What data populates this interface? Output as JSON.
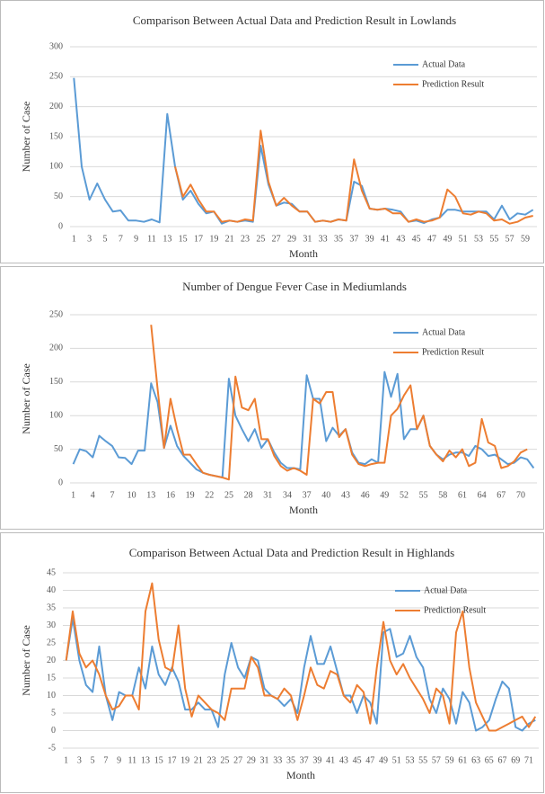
{
  "chart_data": [
    {
      "type": "line",
      "title": "Comparison Between Actual Data and Prediction Result in Lowlands",
      "x_label": "Month",
      "y_label": "Number of Case",
      "grid": true,
      "legend": "upper right",
      "categories": [
        "1",
        null,
        "3",
        null,
        "5",
        null,
        "7",
        null,
        "9",
        null,
        "11",
        null,
        "13",
        null,
        "15",
        null,
        "17",
        null,
        "19",
        null,
        "21",
        null,
        "23",
        null,
        "25",
        null,
        "27",
        null,
        "29",
        null,
        "31",
        null,
        "33",
        null,
        "35",
        null,
        "37",
        null,
        "39",
        null,
        "41",
        null,
        "43",
        null,
        "45",
        null,
        "47",
        null,
        "49",
        null,
        "51",
        null,
        "53",
        null,
        "55",
        null,
        "57",
        null,
        "59",
        null
      ],
      "ylim": [
        0,
        300
      ],
      "yticks": [
        0,
        50,
        100,
        150,
        200,
        250,
        300
      ],
      "series": [
        {
          "name": "Actual Data",
          "color": "#5b9bd5",
          "values": [
            248,
            100,
            45,
            72,
            45,
            25,
            27,
            10,
            10,
            8,
            12,
            7,
            188,
            100,
            45,
            60,
            38,
            22,
            25,
            5,
            10,
            8,
            10,
            8,
            135,
            70,
            35,
            40,
            38,
            25,
            25,
            8,
            10,
            8,
            12,
            10,
            75,
            68,
            30,
            28,
            30,
            28,
            25,
            8,
            10,
            6,
            12,
            15,
            28,
            28,
            25,
            25,
            25,
            25,
            12,
            35,
            12,
            22,
            20,
            28
          ]
        },
        {
          "name": "Prediction Result",
          "color": "#ed7d31",
          "values": [
            null,
            null,
            null,
            null,
            null,
            null,
            null,
            null,
            null,
            null,
            null,
            null,
            null,
            100,
            50,
            70,
            45,
            25,
            25,
            8,
            10,
            8,
            12,
            10,
            160,
            75,
            35,
            48,
            35,
            25,
            25,
            8,
            10,
            8,
            12,
            10,
            112,
            60,
            30,
            28,
            30,
            22,
            22,
            8,
            12,
            8,
            10,
            15,
            62,
            50,
            22,
            20,
            25,
            22,
            10,
            12,
            5,
            8,
            15,
            18
          ]
        }
      ]
    },
    {
      "type": "line",
      "title": "Number of Dengue Fever Case in Mediumlands",
      "x_label": "Month",
      "y_label": "Number of Case",
      "grid": true,
      "legend": "upper right",
      "categories": [
        "1",
        null,
        null,
        "4",
        null,
        null,
        "7",
        null,
        null,
        "10",
        null,
        null,
        "13",
        null,
        null,
        "16",
        null,
        null,
        "19",
        null,
        null,
        "22",
        null,
        null,
        "25",
        null,
        null,
        "28",
        null,
        null,
        "31",
        null,
        null,
        "34",
        null,
        null,
        "37",
        null,
        null,
        "40",
        null,
        null,
        "43",
        null,
        null,
        "46",
        null,
        null,
        "49",
        null,
        null,
        "52",
        null,
        null,
        "55",
        null,
        null,
        "58",
        null,
        null,
        "61",
        null,
        null,
        "64",
        null,
        null,
        "67",
        null,
        null,
        "70",
        null,
        null
      ],
      "ylim": [
        0,
        250
      ],
      "yticks": [
        0,
        50,
        100,
        150,
        200,
        250
      ],
      "series": [
        {
          "name": "Actual Data",
          "color": "#5b9bd5",
          "values": [
            28,
            50,
            47,
            38,
            70,
            62,
            55,
            38,
            37,
            28,
            48,
            48,
            148,
            120,
            52,
            85,
            55,
            40,
            30,
            20,
            15,
            12,
            10,
            8,
            155,
            100,
            80,
            62,
            80,
            52,
            65,
            45,
            30,
            22,
            22,
            20,
            160,
            125,
            125,
            62,
            82,
            70,
            80,
            45,
            30,
            28,
            35,
            30,
            165,
            128,
            162,
            65,
            80,
            80,
            100,
            55,
            42,
            35,
            42,
            45,
            45,
            40,
            55,
            50,
            40,
            42,
            35,
            28,
            30,
            38,
            35,
            22
          ]
        },
        {
          "name": "Prediction Result",
          "color": "#ed7d31",
          "values": [
            null,
            null,
            null,
            null,
            null,
            null,
            null,
            null,
            null,
            null,
            null,
            null,
            235,
            140,
            52,
            125,
            80,
            42,
            42,
            28,
            15,
            12,
            10,
            8,
            5,
            158,
            112,
            108,
            125,
            65,
            65,
            40,
            25,
            18,
            22,
            18,
            12,
            125,
            118,
            135,
            135,
            68,
            80,
            42,
            28,
            25,
            28,
            30,
            30,
            100,
            110,
            130,
            145,
            80,
            100,
            55,
            42,
            32,
            48,
            38,
            50,
            25,
            30,
            95,
            60,
            55,
            22,
            25,
            32,
            45,
            50,
            null
          ]
        }
      ]
    },
    {
      "type": "line",
      "title": "Comparison Between Actual Data and Prediction Result in Highlands",
      "x_label": "Month",
      "y_label": "Number of Case",
      "grid": true,
      "legend": "upper right",
      "categories": [
        "1",
        null,
        "3",
        null,
        "5",
        null,
        "7",
        null,
        "9",
        null,
        "11",
        null,
        "13",
        null,
        "15",
        null,
        "17",
        null,
        "19",
        null,
        "21",
        null,
        "23",
        null,
        "25",
        null,
        "27",
        null,
        "29",
        null,
        "31",
        null,
        "33",
        null,
        "35",
        null,
        "37",
        null,
        "39",
        null,
        "41",
        null,
        "43",
        null,
        "45",
        null,
        "47",
        null,
        "49",
        null,
        "51",
        null,
        "53",
        null,
        "55",
        null,
        "57",
        null,
        "59",
        null,
        "61",
        null,
        "63",
        null,
        "65",
        null,
        "67",
        null,
        "69",
        null,
        "71",
        null
      ],
      "ylim": [
        -5,
        45
      ],
      "yticks": [
        -5,
        0,
        5,
        10,
        15,
        20,
        25,
        30,
        35,
        40,
        45
      ],
      "series": [
        {
          "name": "Actual Data",
          "color": "#5b9bd5",
          "values": [
            20,
            32,
            20,
            13,
            11,
            24,
            10,
            3,
            11,
            10,
            10,
            18,
            12,
            24,
            16,
            13,
            18,
            14,
            6,
            6,
            8,
            6,
            6,
            1,
            16,
            25,
            18,
            15,
            21,
            20,
            12,
            10,
            9,
            7,
            9,
            5,
            18,
            27,
            19,
            19,
            24,
            17,
            10,
            10,
            5,
            10,
            8,
            2,
            28,
            29,
            21,
            22,
            27,
            21,
            18,
            9,
            5,
            12,
            9,
            2,
            11,
            8,
            0,
            1,
            3,
            9,
            14,
            12,
            1,
            0,
            2,
            3
          ]
        },
        {
          "name": "Prediction Result",
          "color": "#ed7d31",
          "values": [
            20,
            34,
            22,
            18,
            20,
            16,
            10,
            6,
            7,
            10,
            10,
            6,
            34,
            42,
            26,
            18,
            17,
            30,
            12,
            4,
            10,
            8,
            6,
            5,
            3,
            12,
            12,
            12,
            21,
            18,
            10,
            10,
            9,
            12,
            10,
            3,
            10,
            18,
            13,
            12,
            17,
            16,
            10,
            8,
            13,
            11,
            2,
            18,
            31,
            20,
            16,
            19,
            15,
            12,
            9,
            5,
            12,
            10,
            2,
            28,
            34,
            18,
            8,
            4,
            0,
            0,
            1,
            2,
            3,
            4,
            1,
            4
          ]
        }
      ]
    }
  ]
}
